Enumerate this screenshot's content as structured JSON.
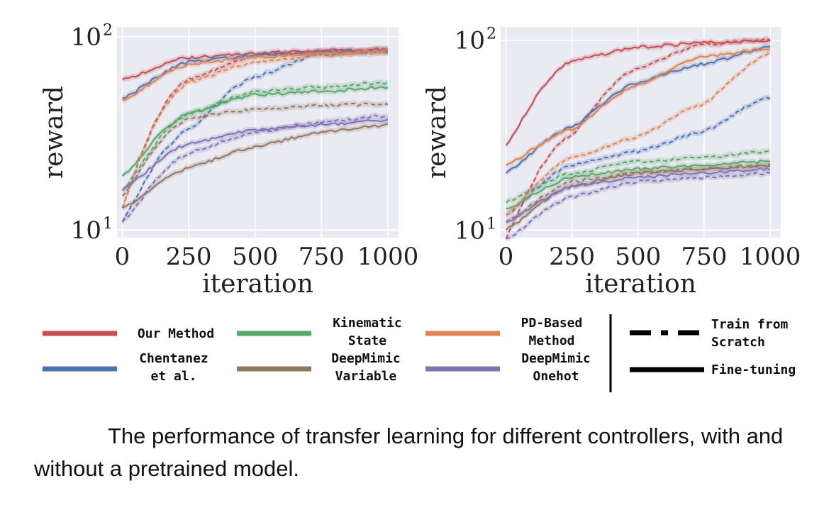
{
  "chart_data": [
    {
      "type": "line",
      "ylabel": "reward",
      "xlabel": "iteration",
      "xlim": [
        -20,
        1040
      ],
      "ylim_log10": [
        0.96,
        2.05
      ],
      "yscale": "log",
      "xticks": [
        0,
        250,
        500,
        750,
        1000
      ],
      "xtick_labels": [
        "0",
        "250",
        "500",
        "750",
        "1000"
      ],
      "yticks": [
        10,
        100
      ],
      "ytick_labels": [
        {
          "base": "10",
          "exp": "1"
        },
        {
          "base": "10",
          "exp": "2"
        }
      ],
      "grid": true,
      "background": "#eaeaf2",
      "x": [
        0,
        250,
        500,
        750,
        1000
      ],
      "series": [
        {
          "name": "Our Method",
          "color": "#c44e52",
          "style": "solid",
          "values": [
            60,
            78,
            82,
            85,
            86
          ]
        },
        {
          "name": "Our Method",
          "color": "#c44e52",
          "style": "dashed",
          "values": [
            13,
            60,
            80,
            84,
            86
          ]
        },
        {
          "name": "Chentanez et al.",
          "color": "#4c72b0",
          "style": "solid",
          "values": [
            48,
            74,
            80,
            83,
            84
          ]
        },
        {
          "name": "Chentanez et al.",
          "color": "#4c72b0",
          "style": "dashed",
          "values": [
            11,
            33,
            62,
            81,
            83
          ]
        },
        {
          "name": "Kinematic State",
          "color": "#55a868",
          "style": "solid",
          "values": [
            19,
            40,
            50,
            52,
            55
          ]
        },
        {
          "name": "Kinematic State",
          "color": "#55a868",
          "style": "dashed",
          "values": [
            16,
            40,
            52,
            55,
            58
          ]
        },
        {
          "name": "PD-Based Method",
          "color": "#dd8452",
          "style": "solid",
          "values": [
            47,
            72,
            78,
            82,
            84
          ]
        },
        {
          "name": "PD-Based Method",
          "color": "#dd8452",
          "style": "dashed",
          "values": [
            13,
            58,
            74,
            80,
            82
          ]
        },
        {
          "name": "DeepMimic Variable",
          "color": "#937860",
          "style": "solid",
          "values": [
            13,
            21,
            27,
            32,
            35
          ]
        },
        {
          "name": "DeepMimic Variable",
          "color": "#937860",
          "style": "dashed",
          "values": [
            15,
            38,
            42,
            44,
            45
          ]
        },
        {
          "name": "DeepMimic Onehot",
          "color": "#8172b2",
          "style": "solid",
          "values": [
            16,
            28,
            33,
            35,
            37
          ]
        },
        {
          "name": "DeepMimic Onehot",
          "color": "#8172b2",
          "style": "dashed",
          "values": [
            11,
            25,
            32,
            36,
            39
          ]
        }
      ]
    },
    {
      "type": "line",
      "ylabel": "reward",
      "xlabel": "iteration",
      "xlim": [
        -20,
        1040
      ],
      "ylim_log10": [
        0.96,
        2.07
      ],
      "yscale": "log",
      "xticks": [
        0,
        250,
        500,
        750,
        1000
      ],
      "xtick_labels": [
        "0",
        "250",
        "500",
        "750",
        "1000"
      ],
      "yticks": [
        10,
        100
      ],
      "ytick_labels": [
        {
          "base": "10",
          "exp": "1"
        },
        {
          "base": "10",
          "exp": "2"
        }
      ],
      "grid": true,
      "background": "#eaeaf2",
      "x": [
        0,
        250,
        500,
        750,
        1000
      ],
      "series": [
        {
          "name": "Our Method",
          "color": "#c44e52",
          "style": "solid",
          "values": [
            28,
            78,
            92,
            97,
            100
          ]
        },
        {
          "name": "Our Method",
          "color": "#c44e52",
          "style": "dashed",
          "values": [
            9,
            32,
            72,
            95,
            100
          ]
        },
        {
          "name": "Chentanez et al.",
          "color": "#4c72b0",
          "style": "solid",
          "values": [
            20,
            35,
            60,
            75,
            92
          ]
        },
        {
          "name": "Chentanez et al.",
          "color": "#4c72b0",
          "style": "dashed",
          "values": [
            12,
            22,
            26,
            33,
            50
          ]
        },
        {
          "name": "Kinematic State",
          "color": "#55a868",
          "style": "solid",
          "values": [
            13,
            19,
            21,
            22,
            23
          ]
        },
        {
          "name": "Kinematic State",
          "color": "#55a868",
          "style": "dashed",
          "values": [
            14,
            20,
            23,
            24,
            26
          ]
        },
        {
          "name": "PD-Based Method",
          "color": "#dd8452",
          "style": "solid",
          "values": [
            22,
            34,
            58,
            82,
            90
          ]
        },
        {
          "name": "PD-Based Method",
          "color": "#dd8452",
          "style": "dashed",
          "values": [
            12,
            24,
            31,
            46,
            86
          ]
        },
        {
          "name": "DeepMimic Variable",
          "color": "#937860",
          "style": "solid",
          "values": [
            10,
            17,
            20,
            21,
            22
          ]
        },
        {
          "name": "DeepMimic Variable",
          "color": "#937860",
          "style": "dashed",
          "values": [
            11,
            18,
            20,
            21,
            22
          ]
        },
        {
          "name": "DeepMimic Onehot",
          "color": "#8172b2",
          "style": "solid",
          "values": [
            11,
            17,
            19,
            20,
            21
          ]
        },
        {
          "name": "DeepMimic Onehot",
          "color": "#8172b2",
          "style": "dashed",
          "values": [
            9,
            15,
            18,
            19,
            20
          ]
        }
      ]
    }
  ],
  "legend": {
    "methods": [
      {
        "lines": [
          "Our Method"
        ],
        "color": "#c44e52"
      },
      {
        "lines": [
          "Chentanez",
          "et al."
        ],
        "color": "#4c72b0"
      },
      {
        "lines": [
          "Kinematic",
          "State"
        ],
        "color": "#55a868"
      },
      {
        "lines": [
          "DeepMimic",
          "Variable"
        ],
        "color": "#937860"
      },
      {
        "lines": [
          "PD-Based",
          "Method"
        ],
        "color": "#dd8452"
      },
      {
        "lines": [
          "DeepMimic",
          "Onehot"
        ],
        "color": "#8172b2"
      }
    ],
    "styles": [
      {
        "lines": [
          "Train from",
          "Scratch"
        ],
        "style": "dashed"
      },
      {
        "lines": [
          "Fine-tuning"
        ],
        "style": "solid"
      }
    ]
  },
  "caption": "The performance of transfer learning for different controllers, with and without a pretrained model."
}
